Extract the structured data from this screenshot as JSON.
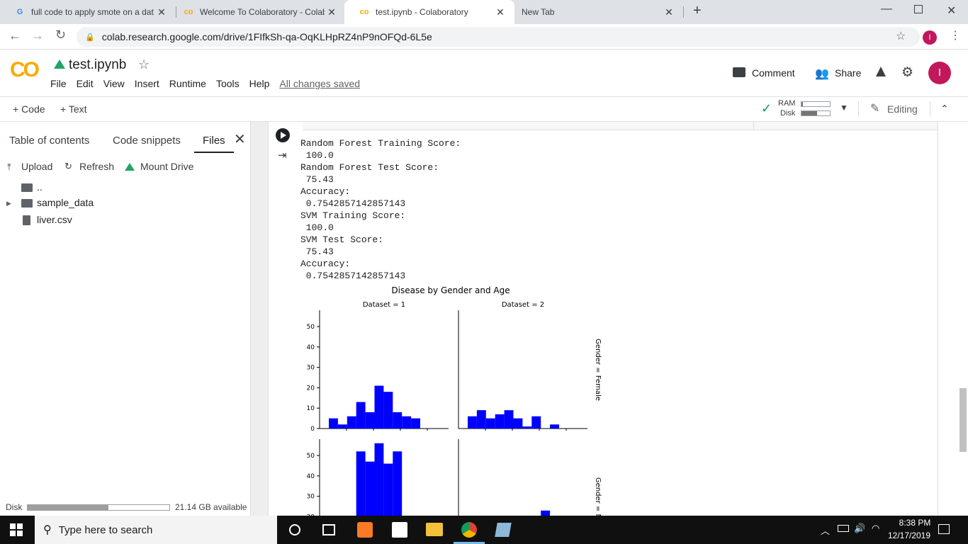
{
  "browser": {
    "tabs": [
      {
        "title": "full code to apply smote on a dat",
        "icon": "google-icon"
      },
      {
        "title": "Welcome To Colaboratory - Colab",
        "icon": "colab-icon"
      },
      {
        "title": "test.ipynb - Colaboratory",
        "icon": "colab-icon",
        "active": true
      },
      {
        "title": "New Tab",
        "icon": "none"
      }
    ],
    "new_tab": "+",
    "url": "colab.research.google.com/drive/1FIfkSh-qa-OqKLHpRZ4nP9nOFQd-6L5e",
    "profile_initial": "I"
  },
  "colab": {
    "logo": "CO",
    "filename": "test.ipynb",
    "menu": [
      "File",
      "Edit",
      "View",
      "Insert",
      "Runtime",
      "Tools",
      "Help"
    ],
    "saved_status": "All changes saved",
    "comment_label": "Comment",
    "share_label": "Share",
    "avatar_initial": "I",
    "add_code": "+ Code",
    "add_text": "+ Text",
    "ram_label": "RAM",
    "disk_label": "Disk",
    "ram_usage": 0.05,
    "disk_usage": 0.55,
    "editing_label": "Editing"
  },
  "sidebar": {
    "tabs": [
      "Table of contents",
      "Code snippets",
      "Files"
    ],
    "active_tab": "Files",
    "actions": {
      "upload": "Upload",
      "refresh": "Refresh",
      "mount": "Mount Drive"
    },
    "files": [
      {
        "name": "..",
        "type": "parent"
      },
      {
        "name": "sample_data",
        "type": "folder"
      },
      {
        "name": "liver.csv",
        "type": "file"
      }
    ],
    "disk_label": "Disk",
    "disk_usage": 0.57,
    "disk_available": "21.14 GB available"
  },
  "output": {
    "lines": [
      "Random Forest Training Score:",
      " 100.0",
      "Random Forest Test Score:",
      " 75.43",
      "Accuracy:",
      " 0.7542857142857143",
      "SVM Training Score:",
      " 100.0",
      "SVM Test Score:",
      " 75.43",
      "Accuracy:",
      " 0.7542857142857143"
    ]
  },
  "chart_data": {
    "type": "bar",
    "title": "Disease by Gender and Age",
    "col_titles": [
      "Dataset = 1",
      "Dataset = 2"
    ],
    "row_titles": [
      "Gender = Female",
      "Gender = M"
    ],
    "yticks": [
      0,
      10,
      20,
      30,
      40,
      50
    ],
    "ylim": [
      0,
      58
    ],
    "color": "#0000ff",
    "panels": [
      {
        "row": 0,
        "col": 0,
        "values": [
          5,
          2,
          6,
          13,
          8,
          21,
          18,
          8,
          6,
          5,
          0,
          0
        ]
      },
      {
        "row": 0,
        "col": 1,
        "values": [
          6,
          9,
          5,
          7,
          9,
          5,
          1,
          6,
          0,
          2,
          0,
          0
        ]
      },
      {
        "row": 1,
        "col": 0,
        "values": [
          0,
          0,
          0,
          52,
          47,
          56,
          46,
          52,
          1,
          0,
          0,
          0
        ]
      },
      {
        "row": 1,
        "col": 1,
        "values": [
          0,
          0,
          0,
          0,
          0,
          0,
          0,
          0,
          23,
          0,
          0,
          0
        ]
      }
    ]
  },
  "taskbar": {
    "search_placeholder": "Type here to search",
    "time": "8:38 PM",
    "date": "12/17/2019"
  }
}
